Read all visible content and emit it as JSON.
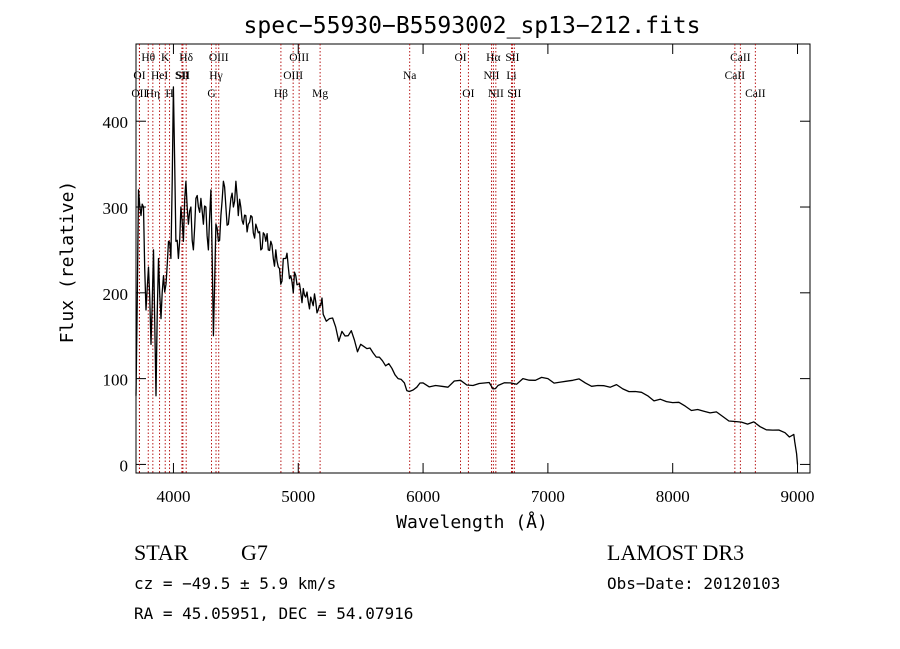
{
  "chart_data": {
    "type": "line",
    "title": "spec−55930−B5593002_sp13−212.fits",
    "xlabel": "Wavelength (Å)",
    "ylabel": "Flux (relative)",
    "xlim": [
      3700,
      9100
    ],
    "ylim": [
      -10,
      490
    ],
    "xticks": [
      4000,
      5000,
      6000,
      7000,
      8000,
      9000
    ],
    "yticks": [
      0,
      100,
      200,
      300,
      400
    ],
    "series": [
      {
        "name": "spectrum",
        "x": [
          3700,
          3720,
          3740,
          3760,
          3780,
          3800,
          3820,
          3840,
          3860,
          3880,
          3900,
          3920,
          3940,
          3960,
          3980,
          4000,
          4020,
          4040,
          4060,
          4080,
          4100,
          4120,
          4140,
          4160,
          4180,
          4200,
          4220,
          4240,
          4260,
          4280,
          4300,
          4320,
          4340,
          4360,
          4380,
          4400,
          4420,
          4440,
          4460,
          4480,
          4500,
          4520,
          4540,
          4560,
          4580,
          4600,
          4620,
          4640,
          4660,
          4680,
          4700,
          4720,
          4740,
          4760,
          4780,
          4800,
          4820,
          4840,
          4860,
          4880,
          4900,
          4920,
          4940,
          4960,
          4980,
          5000,
          5020,
          5040,
          5060,
          5080,
          5100,
          5120,
          5140,
          5160,
          5180,
          5200,
          5250,
          5300,
          5350,
          5400,
          5450,
          5500,
          5550,
          5600,
          5650,
          5700,
          5750,
          5800,
          5850,
          5890,
          5950,
          6000,
          6100,
          6200,
          6300,
          6400,
          6500,
          6560,
          6600,
          6700,
          6800,
          6900,
          7000,
          7100,
          7200,
          7300,
          7400,
          7500,
          7600,
          7700,
          7800,
          7900,
          8000,
          8100,
          8200,
          8300,
          8400,
          8500,
          8600,
          8700,
          8800,
          8900,
          8970,
          8985,
          9000
        ],
        "values": [
          80,
          320,
          290,
          300,
          180,
          230,
          140,
          250,
          80,
          240,
          170,
          220,
          210,
          260,
          240,
          440,
          260,
          240,
          300,
          260,
          330,
          280,
          300,
          250,
          310,
          300,
          310,
          280,
          300,
          250,
          320,
          150,
          280,
          260,
          290,
          330,
          300,
          280,
          310,
          300,
          330,
          290,
          300,
          280,
          290,
          280,
          290,
          270,
          280,
          270,
          250,
          270,
          260,
          250,
          260,
          240,
          250,
          230,
          210,
          240,
          240,
          230,
          220,
          200,
          220,
          210,
          200,
          205,
          195,
          190,
          195,
          185,
          190,
          180,
          185,
          175,
          170,
          160,
          155,
          150,
          145,
          140,
          135,
          130,
          125,
          115,
          112,
          100,
          95,
          85,
          90,
          95,
          92,
          90,
          98,
          92,
          95,
          88,
          92,
          95,
          100,
          98,
          100,
          96,
          98,
          95,
          92,
          90,
          88,
          85,
          80,
          76,
          72,
          68,
          64,
          60,
          56,
          50,
          47,
          44,
          40,
          37,
          35,
          20,
          0
        ]
      }
    ],
    "line_marks": [
      {
        "label": "Hθ",
        "x": 3798,
        "row": 0
      },
      {
        "label": "OII",
        "x": 3727,
        "row": 2
      },
      {
        "label": "OI",
        "x": 3728,
        "row": 1
      },
      {
        "label": "Hη",
        "x": 3835,
        "row": 2
      },
      {
        "label": "HeI",
        "x": 3889,
        "row": 1
      },
      {
        "label": "K",
        "x": 3934,
        "row": 0
      },
      {
        "label": "H",
        "x": 3969,
        "row": 2
      },
      {
        "label": "SII",
        "x": 4068,
        "row": 1
      },
      {
        "label": "Hδ",
        "x": 4102,
        "row": 0
      },
      {
        "label": "SII",
        "x": 4076,
        "row": 1
      },
      {
        "label": "G",
        "x": 4305,
        "row": 2
      },
      {
        "label": "Hγ",
        "x": 4341,
        "row": 1
      },
      {
        "label": "OIII",
        "x": 4363,
        "row": 0
      },
      {
        "label": "Hβ",
        "x": 4861,
        "row": 2
      },
      {
        "label": "OIII",
        "x": 4959,
        "row": 1
      },
      {
        "label": "OIII",
        "x": 5007,
        "row": 0
      },
      {
        "label": "Mg",
        "x": 5175,
        "row": 2
      },
      {
        "label": "Na",
        "x": 5893,
        "row": 1
      },
      {
        "label": "OI",
        "x": 6300,
        "row": 0
      },
      {
        "label": "OI",
        "x": 6363,
        "row": 2
      },
      {
        "label": "NII",
        "x": 6548,
        "row": 1
      },
      {
        "label": "Hα",
        "x": 6563,
        "row": 0
      },
      {
        "label": "NII",
        "x": 6583,
        "row": 2
      },
      {
        "label": "Li",
        "x": 6708,
        "row": 1
      },
      {
        "label": "SII",
        "x": 6716,
        "row": 0
      },
      {
        "label": "SII",
        "x": 6731,
        "row": 2
      },
      {
        "label": "CaII",
        "x": 8498,
        "row": 1
      },
      {
        "label": "CaII",
        "x": 8542,
        "row": 0
      },
      {
        "label": "CaII",
        "x": 8662,
        "row": 2
      }
    ]
  },
  "info": {
    "object_class": "STAR",
    "subclass": "G7",
    "survey": "LAMOST DR3",
    "redshift": "cz = −49.5 ± 5.9 km/s",
    "obs_date": "Obs−Date: 20120103",
    "coords": "RA =  45.05951, DEC =  54.07916"
  },
  "colors": {
    "spectrum": "#000000",
    "line_marks": "#b00000",
    "axes": "#000000"
  }
}
